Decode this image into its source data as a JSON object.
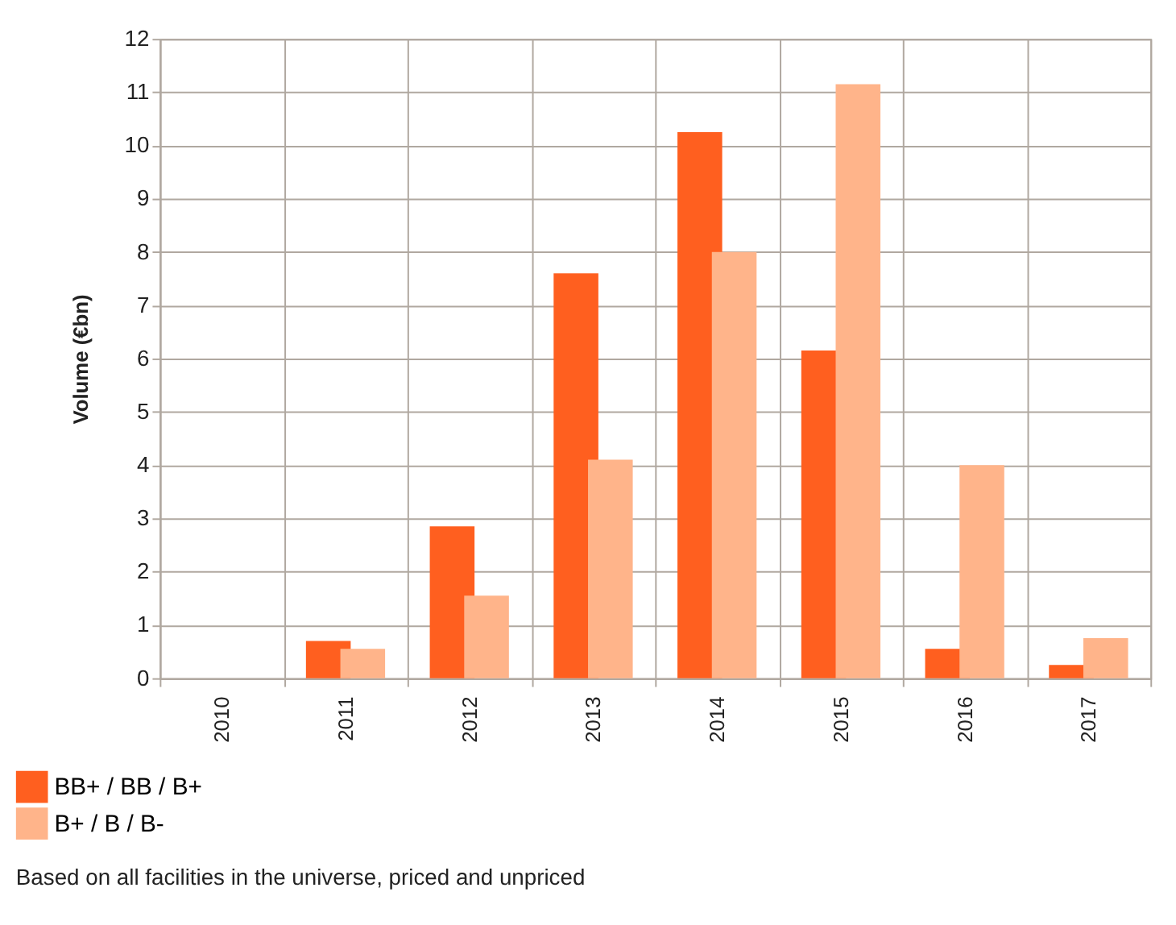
{
  "chart_data": {
    "type": "bar",
    "ylabel": "Volume (€bn)",
    "categories": [
      "2010",
      "2011",
      "2012",
      "2013",
      "2014",
      "2015",
      "2016",
      "2017"
    ],
    "series": [
      {
        "name": "BB+ / BB / B+",
        "color": "#ff5f1f",
        "values": [
          0,
          0.7,
          2.85,
          7.6,
          10.25,
          6.15,
          0.55,
          0.25
        ]
      },
      {
        "name": "B+ / B / B-",
        "color": "#ffb48a",
        "values": [
          0,
          0.55,
          1.55,
          4.1,
          8.0,
          11.15,
          4.0,
          0.75
        ]
      }
    ],
    "ylim": [
      0,
      12
    ],
    "yticks": [
      0,
      1,
      2,
      3,
      4,
      5,
      6,
      7,
      8,
      9,
      10,
      11,
      12
    ],
    "grid": "y",
    "legend": "bottom left",
    "annotations": [
      "Based on all facilities in the universe, priced and unpriced"
    ]
  }
}
